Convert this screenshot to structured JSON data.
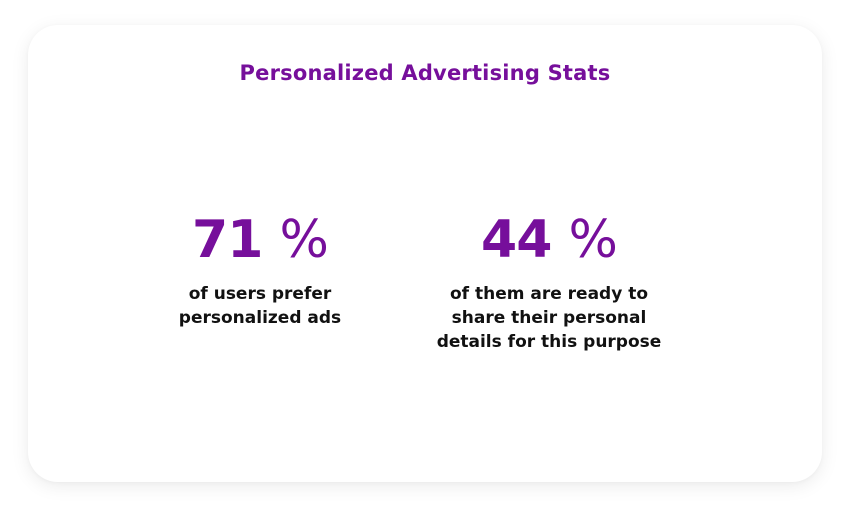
{
  "card": {
    "title": "Personalized Advertising Stats",
    "accent_color": "#760f9b",
    "stats": [
      {
        "number": "71",
        "unit": "%",
        "description_lines": [
          "of users prefer",
          "personalized ads"
        ]
      },
      {
        "number": "44",
        "unit": "%",
        "description_lines": [
          "of them are ready to",
          "share their personal",
          "details for this purpose"
        ]
      }
    ]
  }
}
